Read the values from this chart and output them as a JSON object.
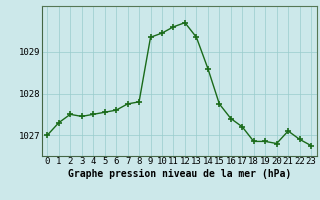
{
  "x": [
    0,
    1,
    2,
    3,
    4,
    5,
    6,
    7,
    8,
    9,
    10,
    11,
    12,
    13,
    14,
    15,
    16,
    17,
    18,
    19,
    20,
    21,
    22,
    23
  ],
  "y": [
    1027.0,
    1027.3,
    1027.5,
    1027.45,
    1027.5,
    1027.55,
    1027.6,
    1027.75,
    1027.8,
    1029.35,
    1029.45,
    1029.6,
    1029.7,
    1029.35,
    1028.6,
    1027.75,
    1027.4,
    1027.2,
    1026.85,
    1026.85,
    1026.8,
    1027.1,
    1026.9,
    1026.75
  ],
  "line_color": "#1a6b1a",
  "marker_color": "#1a6b1a",
  "bg_color": "#cce8ea",
  "grid_color": "#99cccc",
  "xlabel": "Graphe pression niveau de la mer (hPa)",
  "ylim": [
    1026.5,
    1030.1
  ],
  "yticks": [
    1027,
    1028,
    1029
  ],
  "xticks": [
    0,
    1,
    2,
    3,
    4,
    5,
    6,
    7,
    8,
    9,
    10,
    11,
    12,
    13,
    14,
    15,
    16,
    17,
    18,
    19,
    20,
    21,
    22,
    23
  ],
  "xlabel_fontsize": 7,
  "tick_fontsize": 6.5,
  "line_width": 1.0,
  "marker_size": 4
}
